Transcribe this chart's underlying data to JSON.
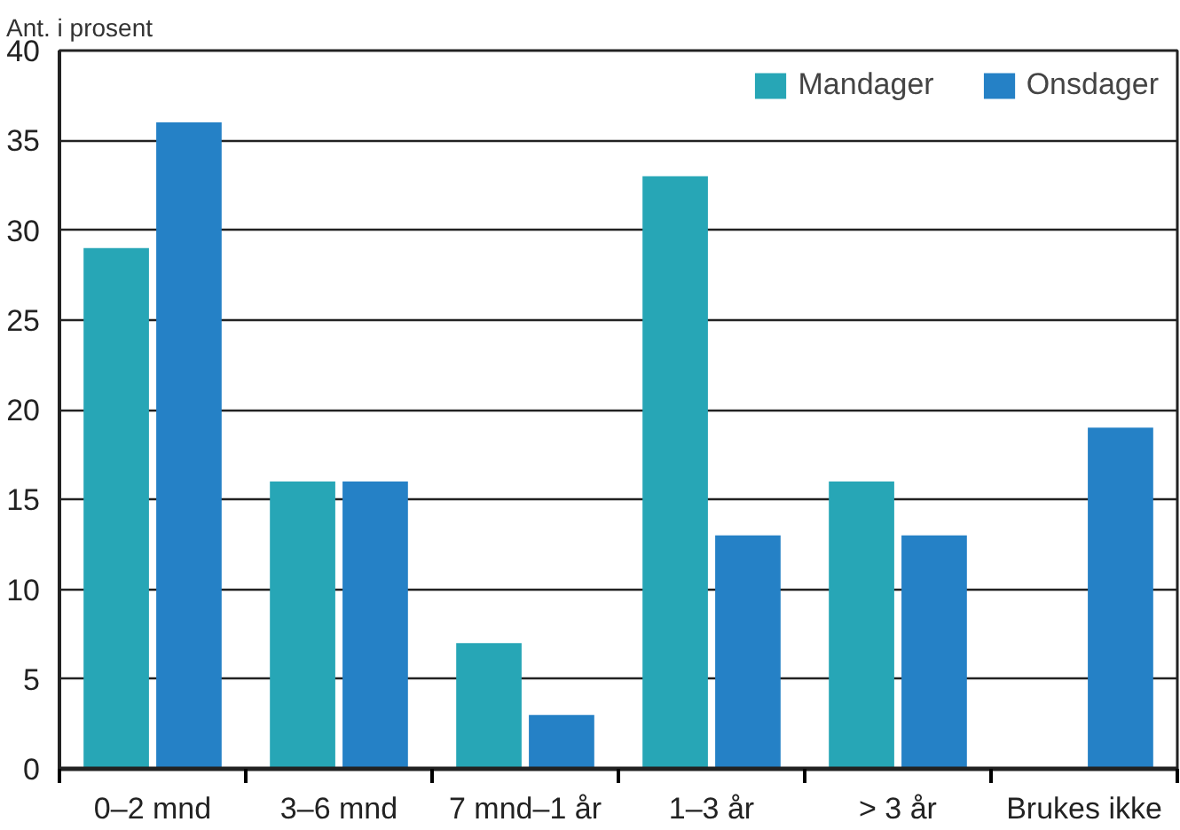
{
  "chart_data": {
    "type": "bar",
    "ylabel": "Ant. i prosent",
    "categories": [
      "0–2 mnd",
      "3–6 mnd",
      "7 mnd–1 år",
      "1–3 år",
      "> 3 år",
      "Brukes ikke"
    ],
    "series": [
      {
        "name": "Mandager",
        "color": "#27a6b6",
        "values": [
          29,
          16,
          7,
          33,
          16,
          null
        ]
      },
      {
        "name": "Onsdager",
        "color": "#2581c6",
        "values": [
          36,
          16,
          3,
          13,
          13,
          19
        ]
      }
    ],
    "ylim": [
      0,
      40
    ],
    "yticks": [
      0,
      5,
      10,
      15,
      20,
      25,
      30,
      35,
      40
    ],
    "grid": "y",
    "legend": "top right"
  }
}
